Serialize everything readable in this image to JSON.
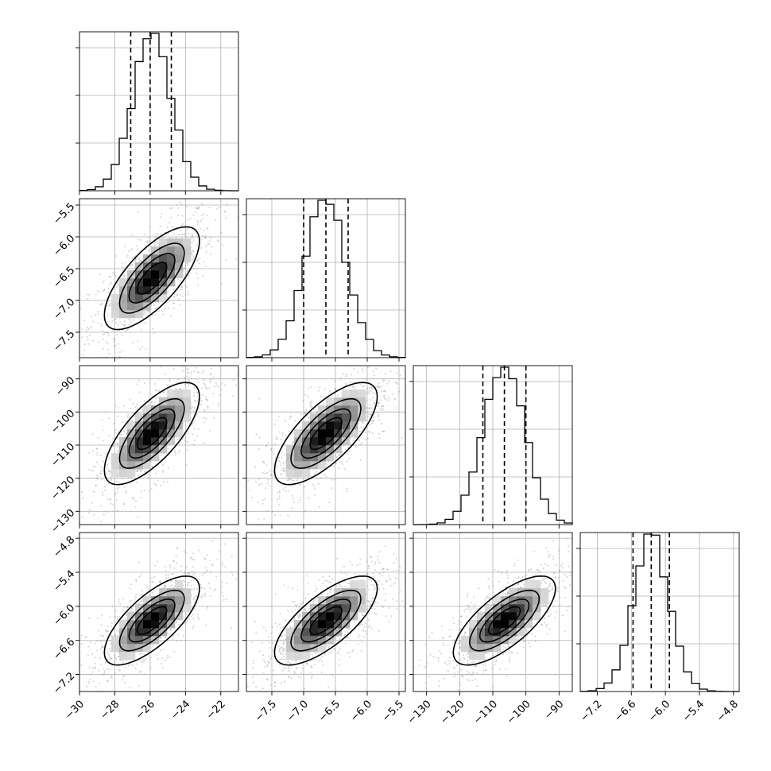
{
  "chart_data": {
    "type": "corner",
    "parameters": [
      {
        "range": [
          -30,
          -21
        ],
        "ticks": [
          -30,
          -28,
          -26,
          -24,
          -22
        ],
        "tick_labels": [
          "−30",
          "−28",
          "−26",
          "−24",
          "−22"
        ],
        "quantiles": [
          -27.1,
          -26.0,
          -24.8
        ],
        "mean": -25.9,
        "sd": 1.1
      },
      {
        "range": [
          -7.9,
          -5.4
        ],
        "ticks": [
          -7.5,
          -7.0,
          -6.5,
          -6.0,
          -5.5
        ],
        "tick_labels": [
          "−7.5",
          "−7.0",
          "−6.5",
          "−6.0",
          "−5.5"
        ],
        "quantiles": [
          -7.0,
          -6.65,
          -6.3
        ],
        "mean": -6.65,
        "sd": 0.33
      },
      {
        "range": [
          -134,
          -86
        ],
        "ticks": [
          -130,
          -120,
          -110,
          -100,
          -90
        ],
        "tick_labels": [
          "−130",
          "−120",
          "−110",
          "−100",
          "−90"
        ],
        "quantiles": [
          -113,
          -106.5,
          -100
        ],
        "mean": -106.5,
        "sd": 6.3
      },
      {
        "range": [
          -7.5,
          -4.7
        ],
        "ticks": [
          -7.2,
          -6.6,
          -6.0,
          -5.4,
          -4.8
        ],
        "tick_labels": [
          "−7.2",
          "−6.6",
          "−6.0",
          "−5.4",
          "−4.8"
        ],
        "quantiles": [
          -6.57,
          -6.25,
          -5.93
        ],
        "mean": -6.25,
        "sd": 0.32
      }
    ],
    "correlation": 0.72,
    "histogram_bins": 20,
    "contour_levels": [
      0.25,
      0.5,
      0.75,
      0.95
    ],
    "grid": true,
    "scatter_color": "#808080",
    "line_color": "#000000"
  }
}
